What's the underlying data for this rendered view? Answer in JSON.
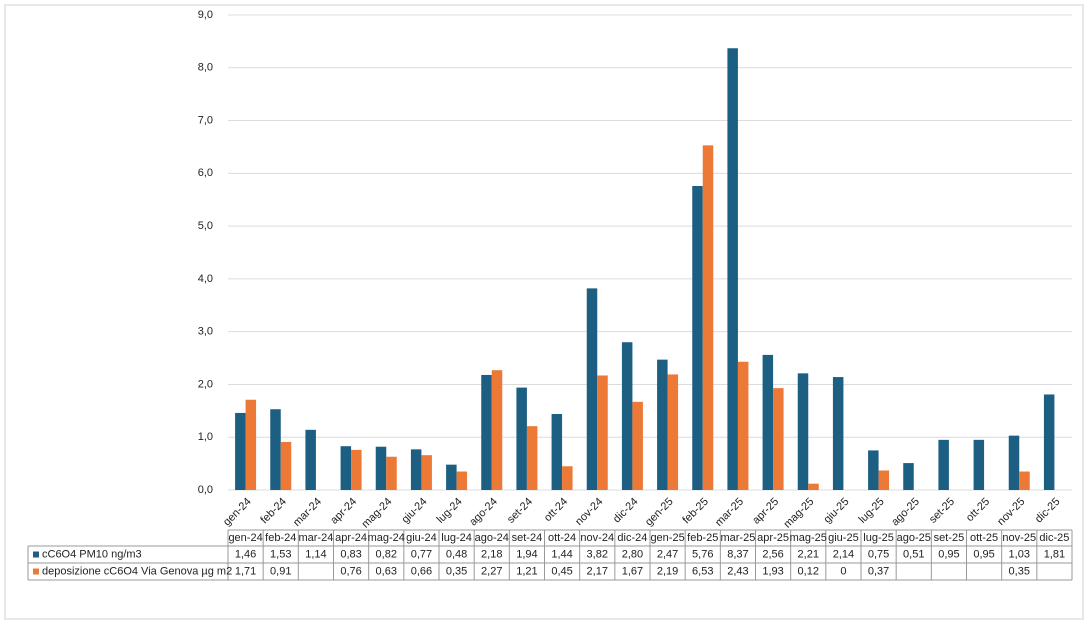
{
  "chart_data": {
    "type": "bar",
    "categories": [
      "gen-24",
      "feb-24",
      "mar-24",
      "apr-24",
      "mag-24",
      "giu-24",
      "lug-24",
      "ago-24",
      "set-24",
      "ott-24",
      "nov-24",
      "dic-24",
      "gen-25",
      "feb-25",
      "mar-25",
      "apr-25",
      "mag-25",
      "giu-25",
      "lug-25",
      "ago-25",
      "set-25",
      "ott-25",
      "nov-25",
      "dic-25"
    ],
    "series": [
      {
        "name": "cC6O4 PM10 ng/m3",
        "color": "#1c5f82",
        "values": [
          1.46,
          1.53,
          1.14,
          0.83,
          0.82,
          0.77,
          0.48,
          2.18,
          1.94,
          1.44,
          3.82,
          2.8,
          2.47,
          5.76,
          8.37,
          2.56,
          2.21,
          2.14,
          0.75,
          0.51,
          0.95,
          0.95,
          1.03,
          1.81
        ],
        "value_labels": [
          "1,46",
          "1,53",
          "1,14",
          "0,83",
          "0,82",
          "0,77",
          "0,48",
          "2,18",
          "1,94",
          "1,44",
          "3,82",
          "2,80",
          "2,47",
          "5,76",
          "8,37",
          "2,56",
          "2,21",
          "2,14",
          "0,75",
          "0,51",
          "0,95",
          "0,95",
          "1,03",
          "1,81"
        ]
      },
      {
        "name": "deposizione cC6O4 Via Genova µg m2",
        "color": "#ec7a36",
        "values": [
          1.71,
          0.91,
          null,
          0.76,
          0.63,
          0.66,
          0.35,
          2.27,
          1.21,
          0.45,
          2.17,
          1.67,
          2.19,
          6.53,
          2.43,
          1.93,
          0.12,
          0,
          0.37,
          null,
          null,
          null,
          0.35,
          null
        ],
        "value_labels": [
          "1,71",
          "0,91",
          null,
          "0,76",
          "0,63",
          "0,66",
          "0,35",
          "2,27",
          "1,21",
          "0,45",
          "2,17",
          "1,67",
          "2,19",
          "6,53",
          "2,43",
          "1,93",
          "0,12",
          "0",
          "0,37",
          null,
          null,
          null,
          "0,35",
          null
        ]
      }
    ],
    "ylim": [
      0,
      9
    ],
    "yticks": [
      {
        "value": 0,
        "label": "0,0"
      },
      {
        "value": 1,
        "label": "1,0"
      },
      {
        "value": 2,
        "label": "2,0"
      },
      {
        "value": 3,
        "label": "3,0"
      },
      {
        "value": 4,
        "label": "4,0"
      },
      {
        "value": 5,
        "label": "5,0"
      },
      {
        "value": 6,
        "label": "6,0"
      },
      {
        "value": 7,
        "label": "7,0"
      },
      {
        "value": 8,
        "label": "8,0"
      },
      {
        "value": 9,
        "label": "9,0"
      }
    ],
    "grid": true
  }
}
